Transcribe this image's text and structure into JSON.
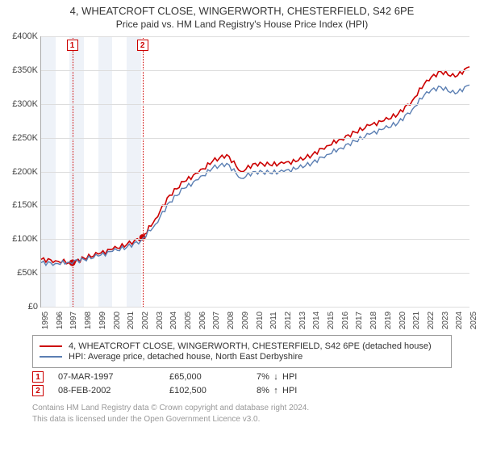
{
  "title": "4, WHEATCROFT CLOSE, WINGERWORTH, CHESTERFIELD, S42 6PE",
  "subtitle": "Price paid vs. HM Land Registry's House Price Index (HPI)",
  "chart": {
    "type": "line",
    "xlim": [
      1995,
      2025
    ],
    "ylim": [
      0,
      400
    ],
    "ytick_step": 50,
    "ytick_prefix": "£",
    "ytick_suffix": "K",
    "background_color": "#ffffff",
    "grid_color": "#dddddd",
    "band_color": "#eef2f8",
    "axis_color": "#aaaaaa",
    "xticks": [
      1995,
      1996,
      1997,
      1998,
      1999,
      2000,
      2001,
      2002,
      2003,
      2004,
      2005,
      2006,
      2007,
      2008,
      2009,
      2010,
      2011,
      2012,
      2013,
      2014,
      2015,
      2016,
      2017,
      2018,
      2019,
      2020,
      2021,
      2022,
      2023,
      2024,
      2025
    ],
    "bands": [
      [
        1995,
        1996
      ],
      [
        1997,
        1998
      ],
      [
        1999,
        2000
      ],
      [
        2001,
        2002
      ]
    ],
    "series": [
      {
        "name": "red",
        "label": "4, WHEATCROFT CLOSE, WINGERWORTH, CHESTERFIELD, S42 6PE (detached house)",
        "color": "#cc0000",
        "width": 1.6,
        "points": [
          [
            1995.0,
            70
          ],
          [
            1996.0,
            68
          ],
          [
            1997.18,
            65
          ],
          [
            1998.0,
            72
          ],
          [
            1999.0,
            78
          ],
          [
            2000.0,
            85
          ],
          [
            2001.0,
            92
          ],
          [
            2002.1,
            102.5
          ],
          [
            2003.0,
            130
          ],
          [
            2004.0,
            165
          ],
          [
            2005.0,
            185
          ],
          [
            2006.0,
            198
          ],
          [
            2007.0,
            215
          ],
          [
            2008.0,
            225
          ],
          [
            2009.0,
            200
          ],
          [
            2010.0,
            212
          ],
          [
            2011.0,
            210
          ],
          [
            2012.0,
            212
          ],
          [
            2013.0,
            216
          ],
          [
            2014.0,
            225
          ],
          [
            2015.0,
            238
          ],
          [
            2016.0,
            248
          ],
          [
            2017.0,
            258
          ],
          [
            2018.0,
            268
          ],
          [
            2019.0,
            275
          ],
          [
            2020.0,
            285
          ],
          [
            2021.0,
            305
          ],
          [
            2022.0,
            335
          ],
          [
            2023.0,
            348
          ],
          [
            2024.0,
            340
          ],
          [
            2025.0,
            355
          ]
        ]
      },
      {
        "name": "blue",
        "label": "HPI: Average price, detached house, North East Derbyshire",
        "color": "#5b7fb3",
        "width": 1.4,
        "points": [
          [
            1995.0,
            65
          ],
          [
            1996.0,
            64
          ],
          [
            1997.0,
            66
          ],
          [
            1998.0,
            70
          ],
          [
            1999.0,
            75
          ],
          [
            2000.0,
            82
          ],
          [
            2001.0,
            88
          ],
          [
            2002.0,
            98
          ],
          [
            2003.0,
            122
          ],
          [
            2004.0,
            155
          ],
          [
            2005.0,
            175
          ],
          [
            2006.0,
            188
          ],
          [
            2007.0,
            205
          ],
          [
            2008.0,
            212
          ],
          [
            2009.0,
            190
          ],
          [
            2010.0,
            200
          ],
          [
            2011.0,
            198
          ],
          [
            2012.0,
            200
          ],
          [
            2013.0,
            205
          ],
          [
            2014.0,
            213
          ],
          [
            2015.0,
            225
          ],
          [
            2016.0,
            235
          ],
          [
            2017.0,
            245
          ],
          [
            2018.0,
            255
          ],
          [
            2019.0,
            263
          ],
          [
            2020.0,
            272
          ],
          [
            2021.0,
            292
          ],
          [
            2022.0,
            318
          ],
          [
            2023.0,
            325
          ],
          [
            2024.0,
            315
          ],
          [
            2025.0,
            328
          ]
        ]
      }
    ],
    "event_markers": [
      {
        "num": "1",
        "x": 1997.18,
        "y": 65,
        "line_color": "#cc0000"
      },
      {
        "num": "2",
        "x": 2002.1,
        "y": 102.5,
        "line_color": "#cc0000"
      }
    ],
    "marker_dot_color": "#cc0000",
    "marker_box_border": "#cc0000"
  },
  "legend": {
    "items": [
      {
        "color": "#cc0000",
        "label": "4, WHEATCROFT CLOSE, WINGERWORTH, CHESTERFIELD, S42 6PE (detached house)"
      },
      {
        "color": "#5b7fb3",
        "label": "HPI: Average price, detached house, North East Derbyshire"
      }
    ]
  },
  "events": [
    {
      "num": "1",
      "date": "07-MAR-1997",
      "price": "£65,000",
      "delta": "7%",
      "dir": "↓",
      "vs": "HPI"
    },
    {
      "num": "2",
      "date": "08-FEB-2002",
      "price": "£102,500",
      "delta": "8%",
      "dir": "↑",
      "vs": "HPI"
    }
  ],
  "footer": {
    "line1": "Contains HM Land Registry data © Crown copyright and database right 2024.",
    "line2": "This data is licensed under the Open Government Licence v3.0."
  }
}
